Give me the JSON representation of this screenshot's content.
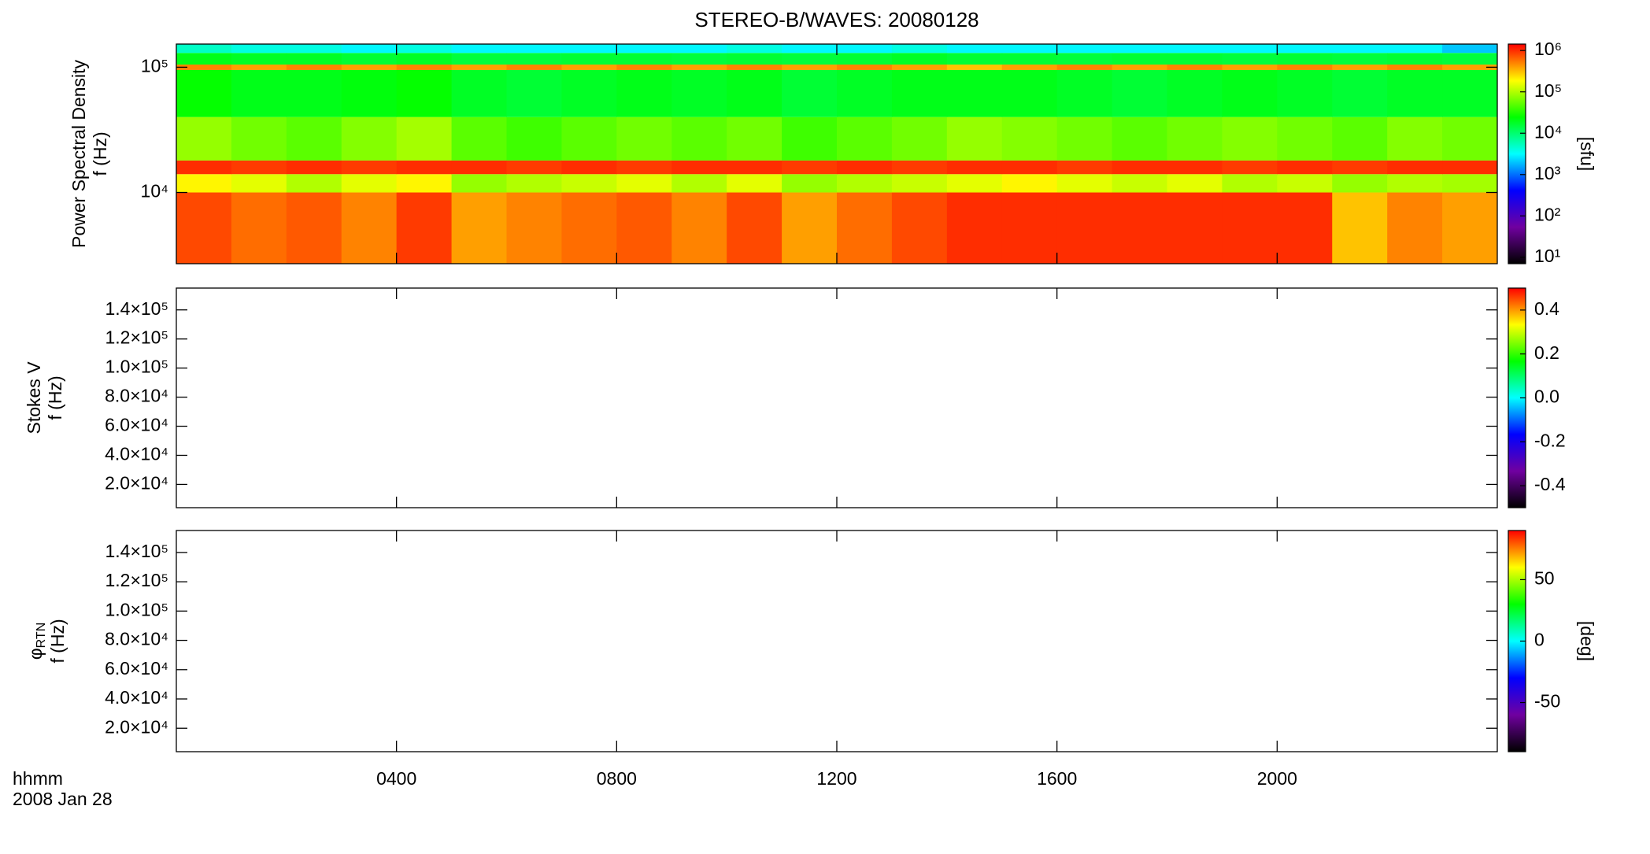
{
  "chart_data": [
    {
      "type": "heatmap",
      "title": "STEREO-B/WAVES: 20080128",
      "ylabel": [
        "Power Spectral Density",
        "f (Hz)"
      ],
      "ylog": true,
      "ylim": [
        2700,
        153000
      ],
      "yticks": [
        {
          "value": 10000,
          "label": "10⁴"
        },
        {
          "value": 100000,
          "label": "10⁵"
        }
      ],
      "x_bins": [
        0,
        1,
        2,
        3,
        4,
        5,
        6,
        7,
        8,
        9,
        10,
        11,
        12,
        13,
        14,
        15,
        16,
        17,
        18,
        19,
        20,
        21,
        22,
        23,
        24
      ],
      "y_bins": [
        2700,
        10000,
        14000,
        18000,
        40000,
        95000,
        105000,
        130000,
        153000
      ],
      "z": [
        [
          800000,
          600000,
          700000,
          500000,
          900000,
          400000,
          500000,
          600000,
          700000,
          500000,
          800000,
          400000,
          600000,
          800000,
          1000000,
          1000000,
          1000000,
          1000000,
          1000000,
          1000000,
          1000000,
          300000,
          500000,
          400000
        ],
        [
          200000,
          150000,
          100000,
          150000,
          200000,
          80000,
          100000,
          120000,
          150000,
          100000,
          150000,
          80000,
          100000,
          120000,
          150000,
          200000,
          150000,
          120000,
          150000,
          100000,
          120000,
          80000,
          100000,
          90000
        ],
        [
          1000000,
          900000,
          1000000,
          900000,
          1000000,
          1000000,
          900000,
          1000000,
          900000,
          1000000,
          1000000,
          900000,
          1000000,
          900000,
          1000000,
          1000000,
          900000,
          1000000,
          1000000,
          900000,
          1000000,
          900000,
          1000000,
          1000000
        ],
        [
          80000,
          60000,
          50000,
          70000,
          90000,
          50000,
          40000,
          50000,
          60000,
          50000,
          60000,
          40000,
          50000,
          60000,
          80000,
          70000,
          60000,
          50000,
          60000,
          70000,
          60000,
          50000,
          70000,
          60000
        ],
        [
          25000,
          20000,
          20000,
          22000,
          25000,
          18000,
          16000,
          18000,
          20000,
          18000,
          20000,
          16000,
          18000,
          20000,
          20000,
          20000,
          18000,
          16000,
          18000,
          20000,
          18000,
          16000,
          18000,
          18000
        ],
        [
          500000,
          400000,
          500000,
          400000,
          500000,
          400000,
          500000,
          400000,
          500000,
          400000,
          500000,
          400000,
          500000,
          400000,
          300000,
          400000,
          500000,
          400000,
          500000,
          400000,
          500000,
          400000,
          500000,
          400000
        ],
        [
          20000,
          18000,
          18000,
          16000,
          18000,
          15000,
          15000,
          16000,
          16000,
          15000,
          16000,
          15000,
          16000,
          18000,
          16000,
          16000,
          15000,
          16000,
          16000,
          15000,
          16000,
          15000,
          16000,
          15000
        ],
        [
          5000,
          4000,
          4000,
          3000,
          4000,
          3000,
          3000,
          3000,
          3000,
          3000,
          4000,
          3000,
          3000,
          4000,
          3000,
          3000,
          3000,
          3000,
          3000,
          3000,
          3000,
          3000,
          3000,
          2000
        ]
      ],
      "colormap": [
        "#000000",
        "#7000a0",
        "#0000ff",
        "#00ffff",
        "#00ff00",
        "#ffff00",
        "#ff0000"
      ],
      "clog": true,
      "clim": [
        7,
        1430000
      ],
      "cticks": [
        {
          "value": 10,
          "label": "10¹"
        },
        {
          "value": 100,
          "label": "10²"
        },
        {
          "value": 1000,
          "label": "10³"
        },
        {
          "value": 10000,
          "label": "10⁴"
        },
        {
          "value": 100000,
          "label": "10⁵"
        },
        {
          "value": 1000000,
          "label": "10⁶"
        }
      ],
      "clabel": "[sfu]"
    },
    {
      "type": "heatmap",
      "ylabel": [
        "Stokes V",
        "f (Hz)"
      ],
      "ylog": false,
      "ylim": [
        4000,
        155000
      ],
      "yticks": [
        {
          "value": 20000,
          "label": "2.0×10⁴"
        },
        {
          "value": 40000,
          "label": "4.0×10⁴"
        },
        {
          "value": 60000,
          "label": "6.0×10⁴"
        },
        {
          "value": 80000,
          "label": "8.0×10⁴"
        },
        {
          "value": 100000,
          "label": "1.0×10⁵"
        },
        {
          "value": 120000,
          "label": "1.2×10⁵"
        },
        {
          "value": 140000,
          "label": "1.4×10⁵"
        }
      ],
      "colormap": [
        "#000000",
        "#7000a0",
        "#0000ff",
        "#00ffff",
        "#00ff00",
        "#ffff00",
        "#ff0000"
      ],
      "clog": false,
      "clim": [
        -0.5,
        0.5
      ],
      "cticks": [
        -0.4,
        -0.2,
        {
          "value": 0,
          "label": "0.0"
        },
        0.2,
        0.4
      ]
    },
    {
      "type": "heatmap",
      "ylabel": [
        "φ",
        "f (Hz)"
      ],
      "ylabel_subscript": "RTN",
      "ylog": false,
      "ylim": [
        4000,
        155000
      ],
      "yticks": [
        {
          "value": 20000,
          "label": "2.0×10⁴"
        },
        {
          "value": 40000,
          "label": "4.0×10⁴"
        },
        {
          "value": 60000,
          "label": "6.0×10⁴"
        },
        {
          "value": 80000,
          "label": "8.0×10⁴"
        },
        {
          "value": 100000,
          "label": "1.0×10⁵"
        },
        {
          "value": 120000,
          "label": "1.2×10⁵"
        },
        {
          "value": 140000,
          "label": "1.4×10⁵"
        }
      ],
      "colormap": [
        "#000000",
        "#7000a0",
        "#0000ff",
        "#00ffff",
        "#00ff00",
        "#ffff00",
        "#ff0000"
      ],
      "clog": false,
      "clim": [
        -90,
        90
      ],
      "cticks": [
        -50,
        0,
        50
      ],
      "clabel": "[deg]",
      "xlim": [
        0,
        24
      ],
      "xticks": [
        {
          "value": 4,
          "label": "0400"
        },
        {
          "value": 8,
          "label": "0800"
        },
        {
          "value": 12,
          "label": "1200"
        },
        {
          "value": 16,
          "label": "1600"
        },
        {
          "value": 20,
          "label": "2000"
        }
      ],
      "xlabel": [
        "hhmm",
        "2008 Jan 28"
      ]
    }
  ]
}
